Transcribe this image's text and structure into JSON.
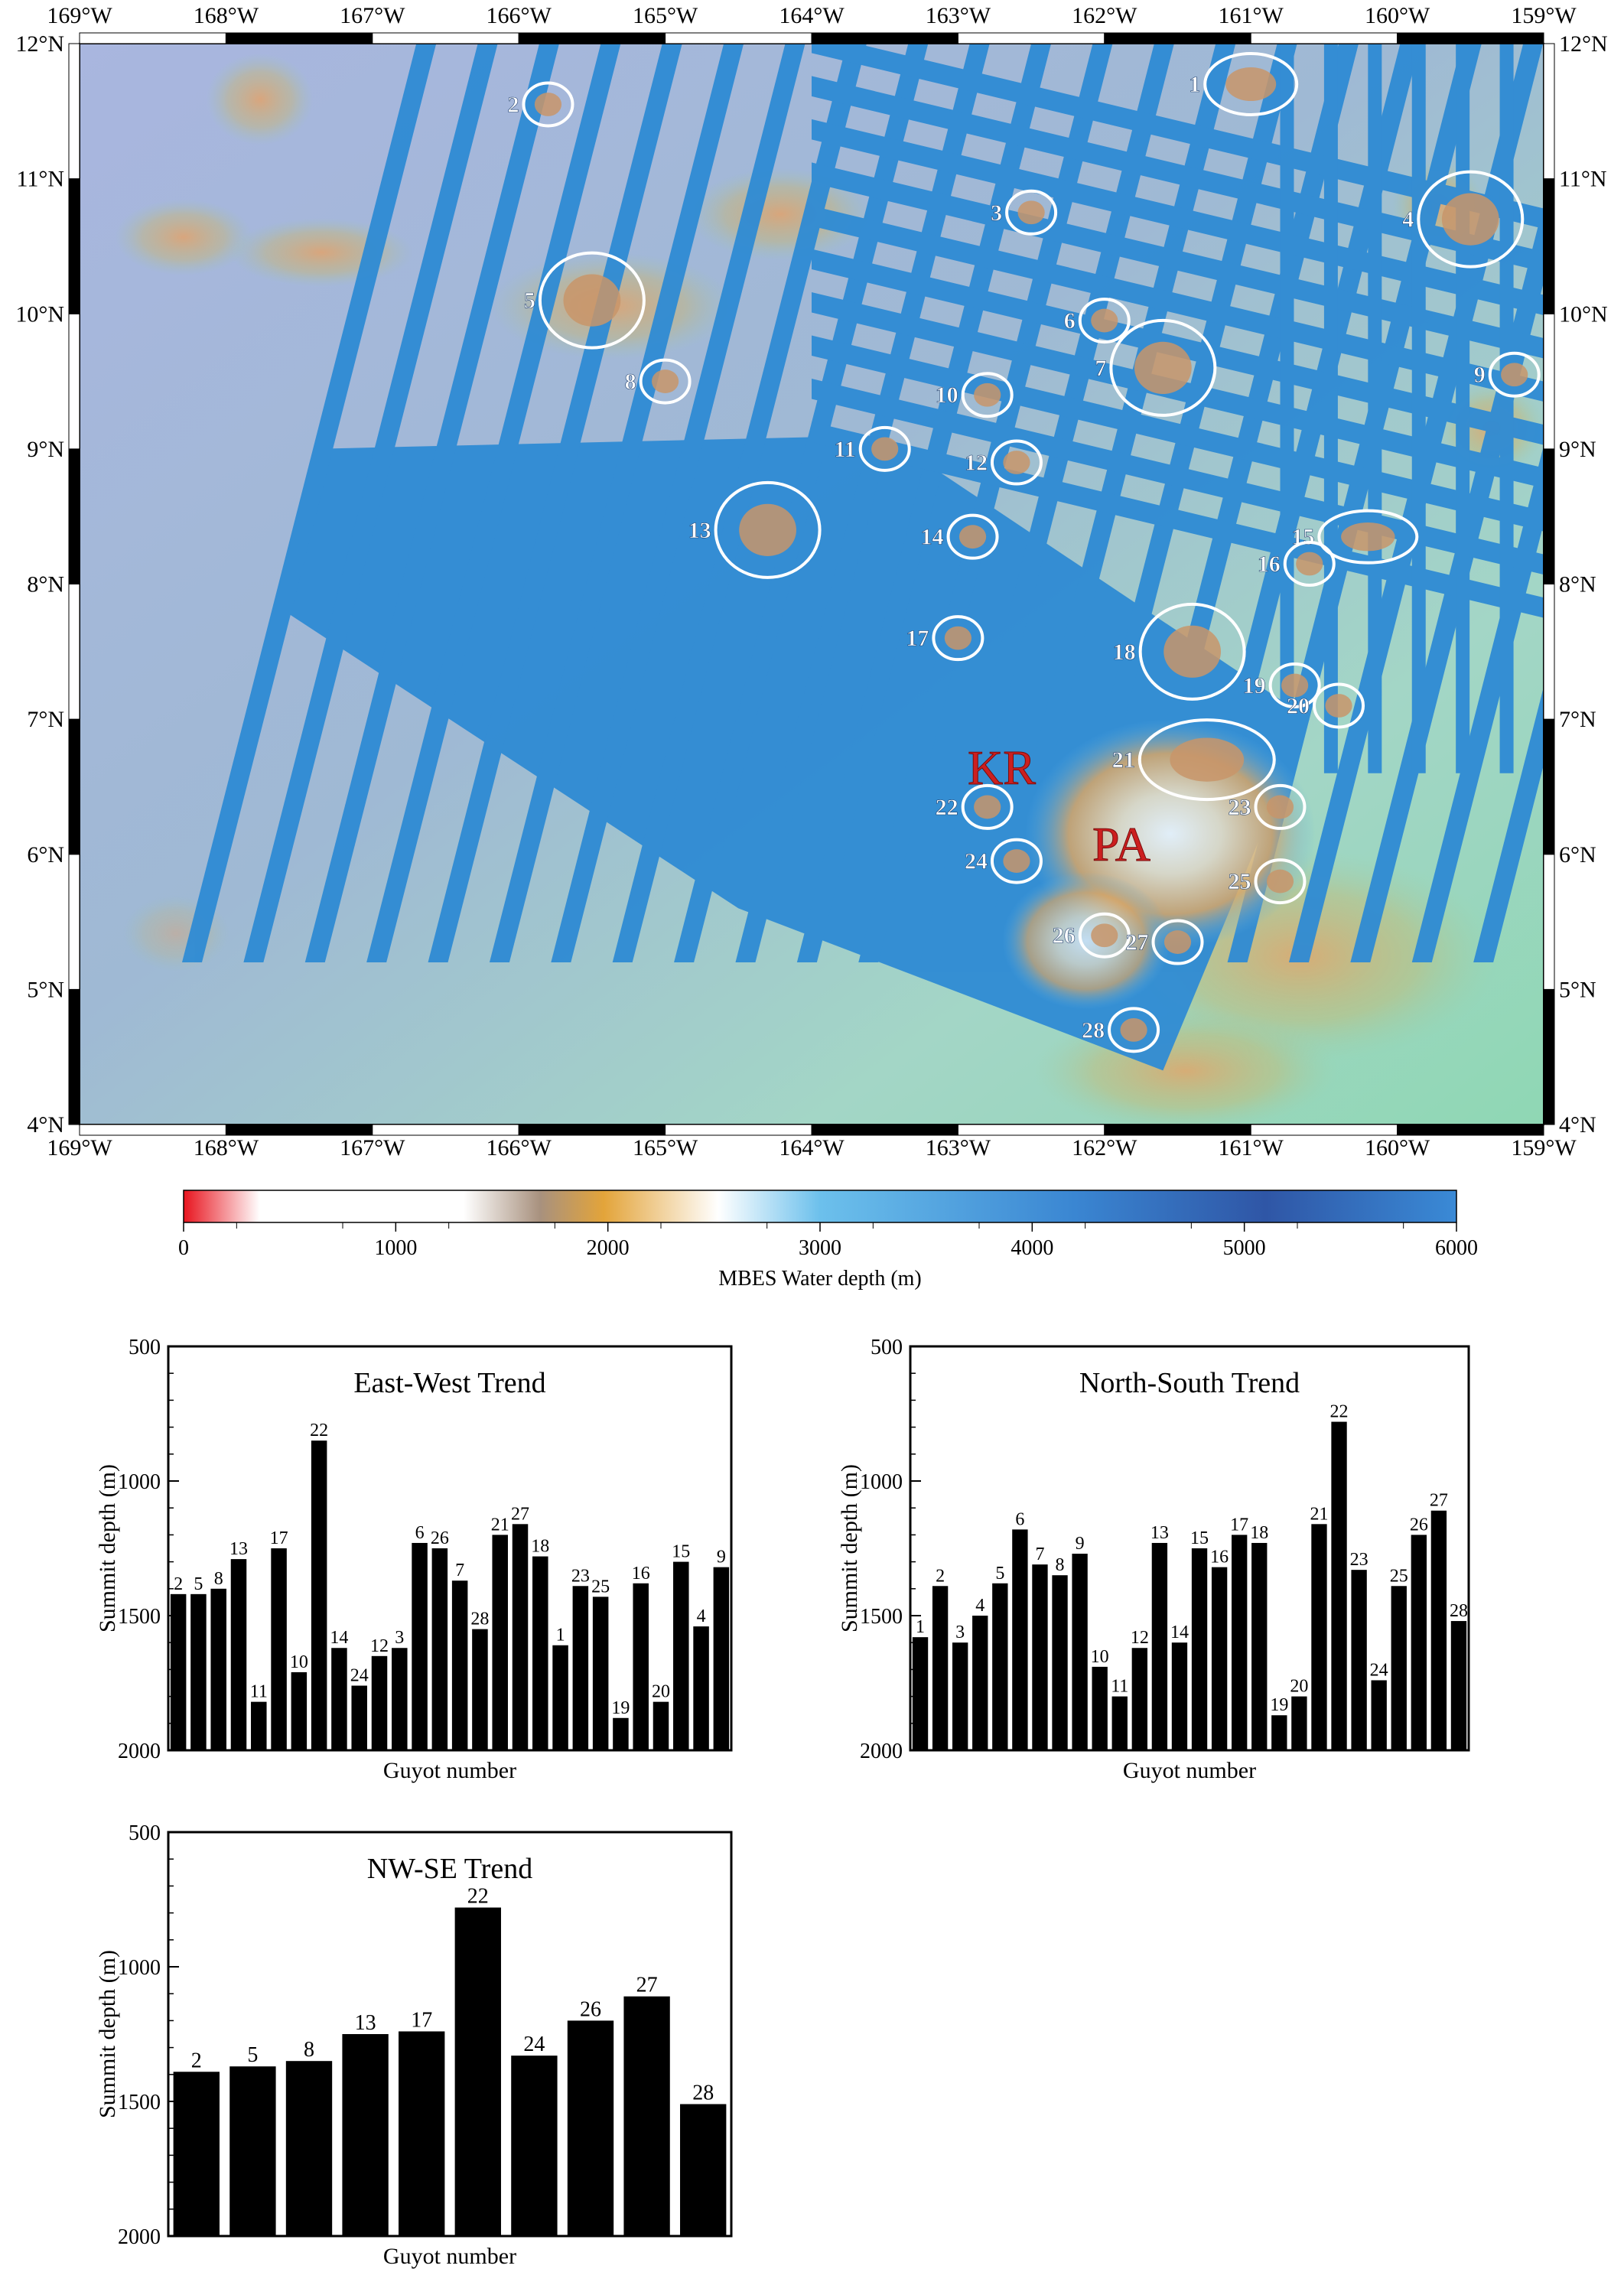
{
  "map": {
    "lon_ticks": [
      "169°W",
      "168°W",
      "167°W",
      "166°W",
      "165°W",
      "164°W",
      "163°W",
      "162°W",
      "161°W",
      "160°W",
      "159°W"
    ],
    "lat_ticks": [
      "4°N",
      "5°N",
      "6°N",
      "7°N",
      "8°N",
      "9°N",
      "10°N",
      "11°N",
      "12°N"
    ],
    "guyots": [
      {
        "id": "1",
        "lon": -161.0,
        "lat": 11.7
      },
      {
        "id": "2",
        "lon": -165.8,
        "lat": 11.55
      },
      {
        "id": "3",
        "lon": -162.5,
        "lat": 10.75
      },
      {
        "id": "4",
        "lon": -159.5,
        "lat": 10.7
      },
      {
        "id": "5",
        "lon": -165.5,
        "lat": 10.1
      },
      {
        "id": "6",
        "lon": -162.0,
        "lat": 9.95
      },
      {
        "id": "7",
        "lon": -161.6,
        "lat": 9.6
      },
      {
        "id": "8",
        "lon": -165.0,
        "lat": 9.5
      },
      {
        "id": "9",
        "lon": -159.2,
        "lat": 9.55
      },
      {
        "id": "10",
        "lon": -162.8,
        "lat": 9.4
      },
      {
        "id": "11",
        "lon": -163.5,
        "lat": 9.0
      },
      {
        "id": "12",
        "lon": -162.6,
        "lat": 8.9
      },
      {
        "id": "13",
        "lon": -164.3,
        "lat": 8.4
      },
      {
        "id": "14",
        "lon": -162.9,
        "lat": 8.35
      },
      {
        "id": "15",
        "lon": -160.2,
        "lat": 8.35
      },
      {
        "id": "16",
        "lon": -160.6,
        "lat": 8.15
      },
      {
        "id": "17",
        "lon": -163.0,
        "lat": 7.6
      },
      {
        "id": "18",
        "lon": -161.4,
        "lat": 7.5
      },
      {
        "id": "19",
        "lon": -160.7,
        "lat": 7.25
      },
      {
        "id": "20",
        "lon": -160.4,
        "lat": 7.1
      },
      {
        "id": "21",
        "lon": -161.3,
        "lat": 6.7
      },
      {
        "id": "22",
        "lon": -162.8,
        "lat": 6.35
      },
      {
        "id": "23",
        "lon": -160.8,
        "lat": 6.35
      },
      {
        "id": "24",
        "lon": -162.6,
        "lat": 5.95
      },
      {
        "id": "25",
        "lon": -160.8,
        "lat": 5.8
      },
      {
        "id": "26",
        "lon": -162.0,
        "lat": 5.4
      },
      {
        "id": "27",
        "lon": -161.5,
        "lat": 5.35
      },
      {
        "id": "28",
        "lon": -161.8,
        "lat": 4.7
      }
    ],
    "region_labels": [
      "KR",
      "PA"
    ],
    "colors": {
      "outline": "#ffffff",
      "region_label": "#cc1f1f",
      "track": "#2f8bd4",
      "background": "#9fb4d8"
    }
  },
  "colorbar": {
    "ticks": [
      "0",
      "1000",
      "2000",
      "3000",
      "4000",
      "5000",
      "6000"
    ],
    "label": "MBES Water depth (m)"
  },
  "chart_data": [
    {
      "type": "bar",
      "title": "East-West Trend",
      "xlabel": "Guyot number",
      "ylabel": "Summit depth (m)",
      "ylim": [
        2000,
        500
      ],
      "yticks": [
        "500",
        "1000",
        "1500",
        "2000"
      ],
      "categories": [
        "2",
        "5",
        "8",
        "13",
        "11",
        "17",
        "10",
        "22",
        "14",
        "24",
        "12",
        "3",
        "6",
        "26",
        "7",
        "28",
        "21",
        "27",
        "18",
        "1",
        "23",
        "25",
        "19",
        "16",
        "20",
        "15",
        "4",
        "9"
      ],
      "values": [
        1420,
        1420,
        1400,
        1290,
        1820,
        1250,
        1710,
        850,
        1620,
        1760,
        1650,
        1620,
        1230,
        1250,
        1370,
        1550,
        1200,
        1160,
        1280,
        1610,
        1390,
        1430,
        1880,
        1380,
        1820,
        1300,
        1540,
        1320
      ]
    },
    {
      "type": "bar",
      "title": "North-South Trend",
      "xlabel": "Guyot number",
      "ylabel": "Summit depth (m)",
      "ylim": [
        2000,
        500
      ],
      "yticks": [
        "500",
        "1000",
        "1500",
        "2000"
      ],
      "categories": [
        "1",
        "2",
        "3",
        "4",
        "5",
        "6",
        "7",
        "8",
        "9",
        "10",
        "11",
        "12",
        "13",
        "14",
        "15",
        "16",
        "17",
        "18",
        "19",
        "20",
        "21",
        "22",
        "23",
        "24",
        "25",
        "26",
        "27",
        "28"
      ],
      "values": [
        1580,
        1390,
        1600,
        1500,
        1380,
        1180,
        1310,
        1350,
        1270,
        1690,
        1800,
        1620,
        1230,
        1600,
        1250,
        1320,
        1200,
        1230,
        1870,
        1800,
        1160,
        780,
        1330,
        1740,
        1390,
        1200,
        1110,
        1520
      ]
    },
    {
      "type": "bar",
      "title": "NW-SE Trend",
      "xlabel": "Guyot number",
      "ylabel": "Summit depth (m)",
      "ylim": [
        2000,
        500
      ],
      "yticks": [
        "500",
        "1000",
        "1500",
        "2000"
      ],
      "categories": [
        "2",
        "5",
        "8",
        "13",
        "17",
        "22",
        "24",
        "26",
        "27",
        "28"
      ],
      "values": [
        1390,
        1370,
        1350,
        1250,
        1240,
        780,
        1330,
        1200,
        1110,
        1510
      ]
    }
  ]
}
